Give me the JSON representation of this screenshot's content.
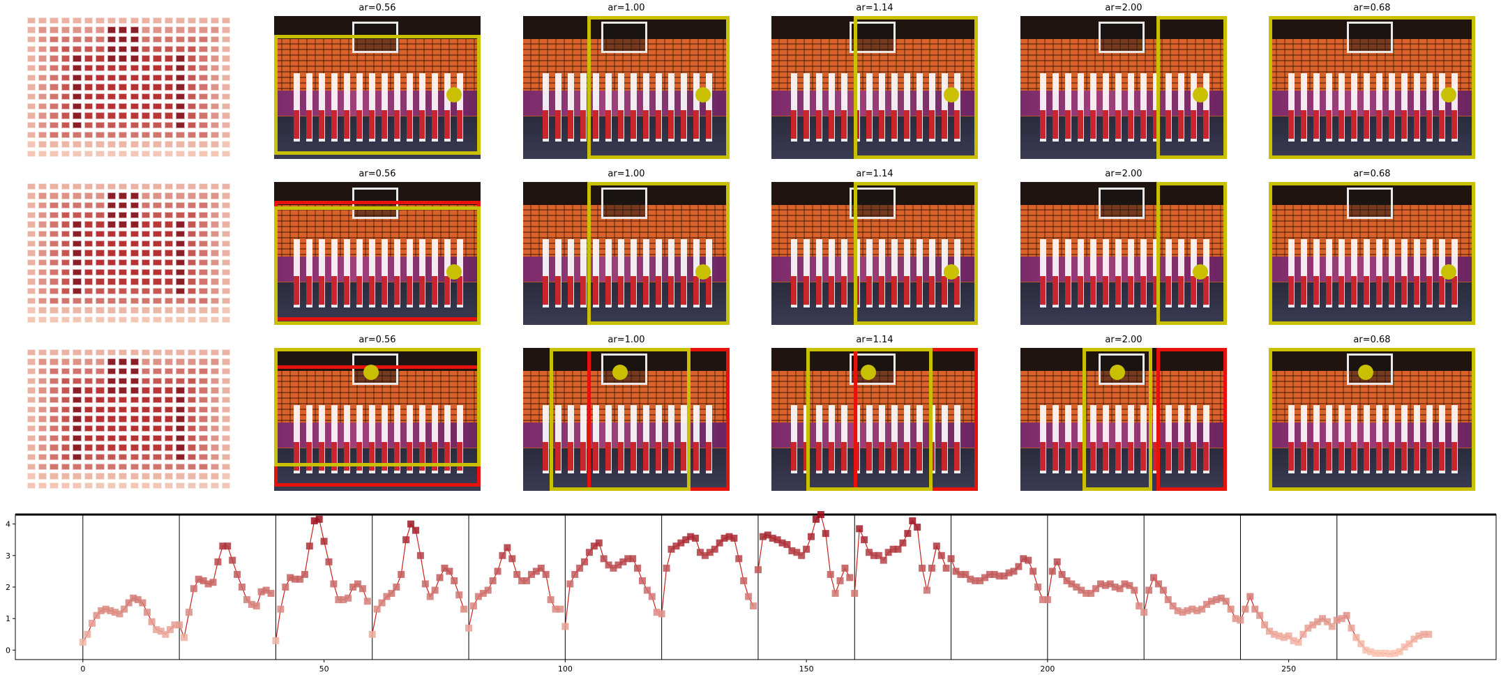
{
  "rows": [
    {
      "panels": [
        {
          "title": "ar=0.56",
          "yellow": [
            [
              0,
              0.13,
              1,
              0.97
            ]
          ],
          "red": [],
          "dot": [
            0.87,
            0.55
          ]
        },
        {
          "title": "ar=1.00",
          "yellow": [
            [
              0.31,
              0,
              1,
              1
            ]
          ],
          "red": [],
          "dot": [
            0.87,
            0.55
          ]
        },
        {
          "title": "ar=1.14",
          "yellow": [
            [
              0.4,
              0,
              1,
              1
            ]
          ],
          "red": [],
          "dot": [
            0.87,
            0.55
          ]
        },
        {
          "title": "ar=2.00",
          "yellow": [
            [
              0.66,
              0,
              1,
              1
            ]
          ],
          "red": [],
          "dot": [
            0.87,
            0.55
          ]
        },
        {
          "title": "ar=0.68",
          "yellow": [
            [
              0,
              0,
              1,
              1
            ]
          ],
          "red": [],
          "dot": [
            0.87,
            0.55
          ]
        }
      ]
    },
    {
      "panels": [
        {
          "title": "ar=0.56",
          "yellow": [
            [
              0,
              0.17,
              1,
              1
            ]
          ],
          "red": [
            [
              0,
              0.13,
              1,
              0.97
            ]
          ],
          "dot": [
            0.87,
            0.63
          ]
        },
        {
          "title": "ar=1.00",
          "yellow": [
            [
              0.31,
              0,
              1,
              1
            ]
          ],
          "red": [],
          "dot": [
            0.87,
            0.63
          ]
        },
        {
          "title": "ar=1.14",
          "yellow": [
            [
              0.4,
              0,
              1,
              1
            ]
          ],
          "red": [],
          "dot": [
            0.87,
            0.63
          ]
        },
        {
          "title": "ar=2.00",
          "yellow": [
            [
              0.66,
              0,
              1,
              1
            ]
          ],
          "red": [],
          "dot": [
            0.87,
            0.63
          ]
        },
        {
          "title": "ar=0.68",
          "yellow": [
            [
              0,
              0,
              1,
              1
            ]
          ],
          "red": [],
          "dot": [
            0.87,
            0.63
          ]
        }
      ]
    },
    {
      "panels": [
        {
          "title": "ar=0.56",
          "yellow": [
            [
              0,
              0,
              1,
              0.83
            ]
          ],
          "red": [
            [
              0,
              0.12,
              1,
              0.97
            ]
          ],
          "dot": [
            0.47,
            0.17
          ]
        },
        {
          "title": "ar=1.00",
          "yellow": [
            [
              0.13,
              0,
              0.81,
              1
            ]
          ],
          "red": [
            [
              0.31,
              0,
              1,
              1
            ]
          ],
          "dot": [
            0.47,
            0.17
          ]
        },
        {
          "title": "ar=1.14",
          "yellow": [
            [
              0.17,
              0,
              0.78,
              1
            ]
          ],
          "red": [
            [
              0.4,
              0,
              1,
              1
            ]
          ],
          "dot": [
            0.47,
            0.17
          ]
        },
        {
          "title": "ar=2.00",
          "yellow": [
            [
              0.3,
              0,
              0.64,
              1
            ]
          ],
          "red": [
            [
              0.66,
              0,
              1,
              1
            ]
          ],
          "dot": [
            0.47,
            0.17
          ]
        },
        {
          "title": "ar=0.68",
          "yellow": [
            [
              0,
              0,
              1,
              1
            ]
          ],
          "red": [],
          "dot": [
            0.47,
            0.17
          ]
        }
      ]
    }
  ],
  "chart_data": {
    "type": "line",
    "title": "",
    "xlabel": "",
    "ylabel": "",
    "xlim": [
      -14,
      293
    ],
    "ylim": [
      -0.3,
      4.3
    ],
    "xticks": [
      "0",
      "50",
      "100",
      "150",
      "200",
      "250"
    ],
    "xtick_values": [
      0,
      50,
      100,
      150,
      200,
      250
    ],
    "yticks": [
      "0",
      "1",
      "2",
      "3",
      "4"
    ],
    "ytick_values": [
      0,
      1,
      2,
      3,
      4
    ],
    "vlines": [
      0,
      20,
      40,
      60,
      80,
      100,
      120,
      140,
      160,
      180,
      200,
      220,
      240,
      260
    ],
    "hline": 4.3,
    "segments": [
      [
        0.25,
        0.5,
        0.85,
        1.1,
        1.25,
        1.3,
        1.25,
        1.2,
        1.15,
        1.3,
        1.5,
        1.65,
        1.6,
        1.5,
        1.2,
        0.9,
        0.65,
        0.6,
        0.5,
        0.65,
        0.8
      ],
      [
        0.8,
        0.4,
        1.2,
        1.95,
        2.25,
        2.2,
        2.1,
        2.15,
        2.8,
        3.3,
        3.3,
        2.85,
        2.4,
        2.0,
        1.6,
        1.45,
        1.4,
        1.85,
        1.9,
        1.8
      ],
      [
        0.3,
        1.3,
        2.0,
        2.3,
        2.25,
        2.25,
        2.4,
        3.3,
        4.1,
        4.15,
        3.45,
        2.8,
        2.1,
        1.6,
        1.6,
        1.65,
        2.0,
        2.1,
        1.95,
        1.55
      ],
      [
        0.5,
        1.3,
        1.5,
        1.7,
        1.8,
        2.0,
        2.4,
        3.5,
        4.0,
        3.8,
        3.0,
        2.1,
        1.7,
        1.9,
        2.3,
        2.6,
        2.5,
        2.2,
        1.75,
        1.3
      ],
      [
        0.7,
        1.4,
        1.7,
        1.8,
        1.9,
        2.2,
        2.5,
        3.0,
        3.25,
        2.9,
        2.4,
        2.2,
        2.2,
        2.4,
        2.5,
        2.6,
        2.4,
        1.6,
        1.3,
        1.3
      ],
      [
        0.75,
        2.1,
        2.4,
        2.6,
        2.8,
        3.1,
        3.3,
        3.4,
        2.9,
        2.7,
        2.6,
        2.7,
        2.8,
        2.9,
        2.9,
        2.6,
        2.2,
        1.9,
        1.7,
        1.2
      ],
      [
        1.15,
        2.6,
        3.2,
        3.3,
        3.4,
        3.5,
        3.6,
        3.55,
        3.1,
        3.0,
        3.1,
        3.2,
        3.4,
        3.55,
        3.6,
        3.55,
        2.9,
        2.2,
        1.7,
        1.4
      ],
      [
        2.55,
        3.6,
        3.65,
        3.55,
        3.5,
        3.4,
        3.35,
        3.15,
        3.1,
        3.0,
        3.2,
        3.6,
        4.15,
        4.3,
        3.7,
        2.4,
        1.8,
        2.2,
        2.6,
        2.3
      ],
      [
        1.8,
        3.85,
        3.5,
        3.1,
        3.0,
        3.0,
        2.85,
        3.1,
        3.2,
        3.2,
        3.4,
        3.7,
        4.1,
        3.9,
        2.6,
        1.9,
        2.6,
        3.3,
        3.0,
        2.6
      ],
      [
        2.9,
        2.5,
        2.4,
        2.4,
        2.25,
        2.2,
        2.2,
        2.3,
        2.4,
        2.4,
        2.35,
        2.35,
        2.45,
        2.5,
        2.65,
        2.9,
        2.85,
        2.5,
        2.0,
        1.6
      ],
      [
        1.6,
        2.5,
        2.8,
        2.4,
        2.2,
        2.1,
        2.0,
        1.9,
        1.8,
        1.8,
        1.95,
        2.1,
        2.05,
        2.1,
        2.0,
        1.95,
        2.1,
        2.05,
        1.9,
        1.4
      ],
      [
        1.2,
        1.9,
        2.3,
        2.1,
        1.9,
        1.6,
        1.4,
        1.25,
        1.2,
        1.25,
        1.3,
        1.25,
        1.3,
        1.45,
        1.55,
        1.6,
        1.65,
        1.55,
        1.3,
        1.0
      ],
      [
        0.95,
        1.3,
        1.7,
        1.3,
        1.1,
        0.8,
        0.6,
        0.5,
        0.45,
        0.4,
        0.45,
        0.3,
        0.25,
        0.5,
        0.7,
        0.8,
        0.9,
        1.0,
        0.9,
        0.75
      ],
      [
        0.95,
        1.0,
        1.1,
        0.7,
        0.4,
        0.2,
        0.0,
        -0.05,
        -0.1,
        -0.1,
        -0.1,
        -0.12,
        -0.1,
        -0.05,
        0.1,
        0.2,
        0.35,
        0.45,
        0.5,
        0.5
      ]
    ]
  }
}
